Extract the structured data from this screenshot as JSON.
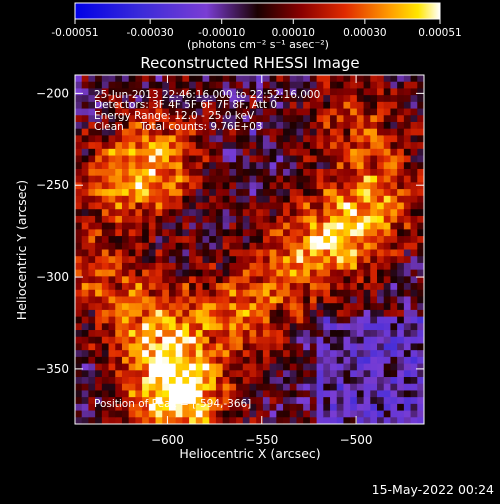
{
  "chart_data": {
    "type": "heatmap",
    "title": "Reconstructed RHESSI Image",
    "xlabel": "Heliocentric X (arcsec)",
    "ylabel": "Heliocentric Y (arcsec)",
    "xlim": [
      -649,
      -464
    ],
    "ylim": [
      -380,
      -190
    ],
    "x_ticks": [
      -600,
      -550,
      -500
    ],
    "y_ticks": [
      -350,
      -300,
      -250,
      -200
    ],
    "colorbar": {
      "ticks": [
        "-0.00051",
        "-0.00030",
        "-0.00010",
        "0.00010",
        "0.00030",
        "0.00051"
      ],
      "unit_label": "(photons cm⁻² s⁻¹ asec⁻²)",
      "range": [
        -0.00051,
        0.00051
      ]
    },
    "annotations": [
      "25-Jun-2013 22:46:16.000 to 22:52:16.000",
      "Detectors: 3F 4F 5F 6F 7F 8F, Att 0",
      "Energy Range: 12.0 - 25.0 keV",
      "Clean     Total counts: 9.76E+03"
    ],
    "position_of_peak": "Position of Peak = [-594,-366]",
    "hotspots": [
      {
        "x": -594,
        "y": -366,
        "v": 0.00051
      },
      {
        "x": -605,
        "y": -330,
        "v": 0.00035
      },
      {
        "x": -560,
        "y": -320,
        "v": 0.00028
      },
      {
        "x": -530,
        "y": -290,
        "v": 0.00026
      },
      {
        "x": -505,
        "y": -275,
        "v": 0.0003
      },
      {
        "x": -485,
        "y": -255,
        "v": 0.00024
      },
      {
        "x": -500,
        "y": -215,
        "v": 0.00022
      },
      {
        "x": -625,
        "y": -250,
        "v": 0.00025
      },
      {
        "x": -605,
        "y": -235,
        "v": 0.0003
      },
      {
        "x": -635,
        "y": -300,
        "v": 0.00022
      }
    ]
  },
  "footer": {
    "timestamp": "15-May-2022 00:24"
  }
}
